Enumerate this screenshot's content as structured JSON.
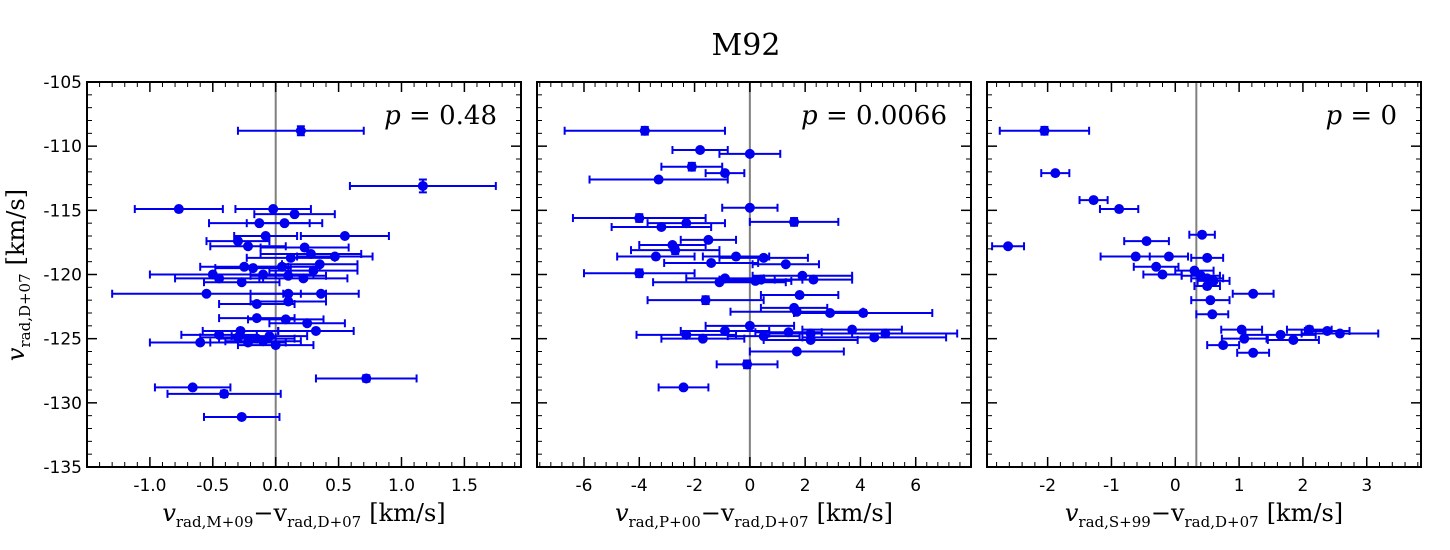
{
  "figure": {
    "title": "M92",
    "ylabel_main": "v",
    "ylabel_sub": "rad,D+07",
    "ylabel_unit": "[km/s]"
  },
  "colors": {
    "points": "#0000ee",
    "zero_line": "#808080"
  },
  "chart_data": [
    {
      "type": "scatter",
      "panel": "M+09",
      "annotation": "p = 0.48",
      "p_label": "p",
      "p_value": "0.48",
      "xlabel_parts": [
        "v",
        "rad,M+09",
        "−v",
        "rad,D+07",
        "[km/s]"
      ],
      "xlim": [
        -1.5,
        1.95
      ],
      "ylim": [
        -135,
        -105
      ],
      "xticks": [
        -1.0,
        -0.5,
        0.0,
        0.5,
        1.0,
        1.5
      ],
      "xtick_labels": [
        "-1.0",
        "-0.5",
        "0.0",
        "0.5",
        "1.0",
        "1.5"
      ],
      "yticks": [
        -135,
        -130,
        -125,
        -120,
        -115,
        -110,
        -105
      ],
      "ytick_labels": [
        "-135",
        "-130",
        "-125",
        "-120",
        "-115",
        "-110",
        "-105"
      ],
      "vline": 0.0,
      "points": [
        {
          "x": 0.2,
          "y": -108.8,
          "xerr": 0.5,
          "yerr": 0.35
        },
        {
          "x": 1.17,
          "y": -113.1,
          "xerr": 0.58,
          "yerr": 0.5
        },
        {
          "x": -0.77,
          "y": -114.9,
          "xerr": 0.35,
          "yerr": 0.1
        },
        {
          "x": -0.02,
          "y": -114.9,
          "xerr": 0.3,
          "yerr": 0.1
        },
        {
          "x": 0.15,
          "y": -115.3,
          "xerr": 0.32,
          "yerr": 0.1
        },
        {
          "x": -0.13,
          "y": -116.0,
          "xerr": 0.4,
          "yerr": 0.1
        },
        {
          "x": 0.07,
          "y": -116.0,
          "xerr": 0.3,
          "yerr": 0.1
        },
        {
          "x": -0.08,
          "y": -117.0,
          "xerr": 0.25,
          "yerr": 0.1
        },
        {
          "x": 0.55,
          "y": -117.0,
          "xerr": 0.35,
          "yerr": 0.1
        },
        {
          "x": -0.3,
          "y": -117.4,
          "xerr": 0.25,
          "yerr": 0.1
        },
        {
          "x": -0.22,
          "y": -117.8,
          "xerr": 0.3,
          "yerr": 0.1
        },
        {
          "x": 0.23,
          "y": -117.9,
          "xerr": 0.35,
          "yerr": 0.1
        },
        {
          "x": 0.28,
          "y": -118.4,
          "xerr": 0.4,
          "yerr": 0.1
        },
        {
          "x": 0.47,
          "y": -118.6,
          "xerr": 0.3,
          "yerr": 0.1
        },
        {
          "x": 0.12,
          "y": -118.7,
          "xerr": 0.35,
          "yerr": 0.1
        },
        {
          "x": 0.35,
          "y": -119.2,
          "xerr": 0.3,
          "yerr": 0.1
        },
        {
          "x": -0.25,
          "y": -119.4,
          "xerr": 0.35,
          "yerr": 0.1
        },
        {
          "x": -0.18,
          "y": -119.5,
          "xerr": 0.3,
          "yerr": 0.1
        },
        {
          "x": 0.05,
          "y": -119.4,
          "xerr": 0.3,
          "yerr": 0.1
        },
        {
          "x": 0.3,
          "y": -119.7,
          "xerr": 0.35,
          "yerr": 0.1
        },
        {
          "x": -0.5,
          "y": -120.0,
          "xerr": 0.5,
          "yerr": 0.1
        },
        {
          "x": -0.1,
          "y": -120.0,
          "xerr": 0.4,
          "yerr": 0.1
        },
        {
          "x": 0.1,
          "y": -120.1,
          "xerr": 0.3,
          "yerr": 0.1
        },
        {
          "x": -0.45,
          "y": -120.3,
          "xerr": 0.35,
          "yerr": 0.1
        },
        {
          "x": -0.27,
          "y": -120.6,
          "xerr": 0.3,
          "yerr": 0.1
        },
        {
          "x": 0.22,
          "y": -120.3,
          "xerr": 0.35,
          "yerr": 0.1
        },
        {
          "x": -0.55,
          "y": -121.5,
          "xerr": 0.75,
          "yerr": 0.1
        },
        {
          "x": 0.1,
          "y": -121.5,
          "xerr": 0.3,
          "yerr": 0.1
        },
        {
          "x": 0.36,
          "y": -121.5,
          "xerr": 0.3,
          "yerr": 0.1
        },
        {
          "x": -0.15,
          "y": -122.3,
          "xerr": 0.3,
          "yerr": 0.1
        },
        {
          "x": 0.1,
          "y": -122.1,
          "xerr": 0.3,
          "yerr": 0.1
        },
        {
          "x": -0.15,
          "y": -123.4,
          "xerr": 0.3,
          "yerr": 0.1
        },
        {
          "x": 0.08,
          "y": -123.5,
          "xerr": 0.3,
          "yerr": 0.1
        },
        {
          "x": 0.25,
          "y": -123.8,
          "xerr": 0.3,
          "yerr": 0.1
        },
        {
          "x": -0.28,
          "y": -124.4,
          "xerr": 0.3,
          "yerr": 0.1
        },
        {
          "x": 0.32,
          "y": -124.4,
          "xerr": 0.3,
          "yerr": 0.1
        },
        {
          "x": -0.45,
          "y": -124.7,
          "xerr": 0.3,
          "yerr": 0.1
        },
        {
          "x": -0.3,
          "y": -124.9,
          "xerr": 0.3,
          "yerr": 0.1
        },
        {
          "x": -0.15,
          "y": -125.0,
          "xerr": 0.3,
          "yerr": 0.1
        },
        {
          "x": -0.05,
          "y": -124.8,
          "xerr": 0.3,
          "yerr": 0.1
        },
        {
          "x": -0.6,
          "y": -125.3,
          "xerr": 0.4,
          "yerr": 0.1
        },
        {
          "x": -0.1,
          "y": -125.2,
          "xerr": 0.3,
          "yerr": 0.1
        },
        {
          "x": -0.22,
          "y": -125.3,
          "xerr": 0.3,
          "yerr": 0.1
        },
        {
          "x": 0.0,
          "y": -125.5,
          "xerr": 0.3,
          "yerr": 0.1
        },
        {
          "x": 0.72,
          "y": -128.1,
          "xerr": 0.4,
          "yerr": 0.25
        },
        {
          "x": -0.66,
          "y": -128.8,
          "xerr": 0.3,
          "yerr": 0.1
        },
        {
          "x": -0.41,
          "y": -129.3,
          "xerr": 0.45,
          "yerr": 0.25
        },
        {
          "x": -0.27,
          "y": -131.1,
          "xerr": 0.3,
          "yerr": 0.1
        }
      ]
    },
    {
      "type": "scatter",
      "panel": "P+00",
      "annotation": "p = 0.0066",
      "p_label": "p",
      "p_value": "0.0066",
      "xlabel_parts": [
        "v",
        "rad,P+00",
        "−v",
        "rad,D+07",
        "[km/s]"
      ],
      "xlim": [
        -7.7,
        8.0
      ],
      "ylim": [
        -135,
        -105
      ],
      "xticks": [
        -6,
        -4,
        -2,
        0,
        2,
        4,
        6
      ],
      "xtick_labels": [
        "-6",
        "-4",
        "-2",
        "0",
        "2",
        "4",
        "6"
      ],
      "yticks": [
        -135,
        -130,
        -125,
        -120,
        -115,
        -110,
        -105
      ],
      "ytick_labels": [
        "-135",
        "-130",
        "-125",
        "-120",
        "-115",
        "-110",
        "-105"
      ],
      "vline": 0.0,
      "points": [
        {
          "x": -3.8,
          "y": -108.8,
          "xerr": 2.9,
          "yerr": 0.3
        },
        {
          "x": -1.8,
          "y": -110.3,
          "xerr": 1.0,
          "yerr": 0.1
        },
        {
          "x": 0.0,
          "y": -110.6,
          "xerr": 1.1,
          "yerr": 0.1
        },
        {
          "x": -2.1,
          "y": -111.6,
          "xerr": 1.1,
          "yerr": 0.3
        },
        {
          "x": -0.9,
          "y": -112.1,
          "xerr": 0.7,
          "yerr": 0.1
        },
        {
          "x": -3.3,
          "y": -112.6,
          "xerr": 2.5,
          "yerr": 0.1
        },
        {
          "x": 0.0,
          "y": -114.8,
          "xerr": 1.0,
          "yerr": 0.1
        },
        {
          "x": -4.0,
          "y": -115.6,
          "xerr": 2.4,
          "yerr": 0.3
        },
        {
          "x": -2.3,
          "y": -116.0,
          "xerr": 1.4,
          "yerr": 0.1
        },
        {
          "x": 1.6,
          "y": -115.9,
          "xerr": 1.6,
          "yerr": 0.3
        },
        {
          "x": -3.2,
          "y": -116.3,
          "xerr": 1.8,
          "yerr": 0.1
        },
        {
          "x": -1.5,
          "y": -117.3,
          "xerr": 1.0,
          "yerr": 0.1
        },
        {
          "x": -2.8,
          "y": -117.7,
          "xerr": 1.2,
          "yerr": 0.1
        },
        {
          "x": -2.7,
          "y": -118.1,
          "xerr": 1.6,
          "yerr": 0.3
        },
        {
          "x": -3.4,
          "y": -118.6,
          "xerr": 1.4,
          "yerr": 0.1
        },
        {
          "x": -0.5,
          "y": -118.6,
          "xerr": 1.2,
          "yerr": 0.1
        },
        {
          "x": 0.5,
          "y": -118.7,
          "xerr": 1.6,
          "yerr": 0.1
        },
        {
          "x": -1.4,
          "y": -119.1,
          "xerr": 1.7,
          "yerr": 0.1
        },
        {
          "x": 1.3,
          "y": -119.2,
          "xerr": 1.2,
          "yerr": 0.1
        },
        {
          "x": -4.0,
          "y": -119.9,
          "xerr": 2.0,
          "yerr": 0.3
        },
        {
          "x": 1.9,
          "y": -120.1,
          "xerr": 1.8,
          "yerr": 0.1
        },
        {
          "x": -0.9,
          "y": -120.3,
          "xerr": 1.4,
          "yerr": 0.1
        },
        {
          "x": 0.4,
          "y": -120.4,
          "xerr": 1.5,
          "yerr": 0.1
        },
        {
          "x": 2.3,
          "y": -120.4,
          "xerr": 1.4,
          "yerr": 0.1
        },
        {
          "x": -1.1,
          "y": -120.6,
          "xerr": 2.4,
          "yerr": 0.1
        },
        {
          "x": 0.2,
          "y": -120.5,
          "xerr": 1.3,
          "yerr": 0.1
        },
        {
          "x": 1.8,
          "y": -121.6,
          "xerr": 1.4,
          "yerr": 0.1
        },
        {
          "x": -1.6,
          "y": -122.0,
          "xerr": 2.1,
          "yerr": 0.3
        },
        {
          "x": 1.6,
          "y": -122.6,
          "xerr": 1.2,
          "yerr": 0.1
        },
        {
          "x": 1.7,
          "y": -122.9,
          "xerr": 2.4,
          "yerr": 0.1
        },
        {
          "x": 2.9,
          "y": -123.0,
          "xerr": 1.3,
          "yerr": 0.1
        },
        {
          "x": 4.1,
          "y": -123.0,
          "xerr": 2.5,
          "yerr": 0.1
        },
        {
          "x": 0.0,
          "y": -124.0,
          "xerr": 1.6,
          "yerr": 0.1
        },
        {
          "x": -0.9,
          "y": -124.4,
          "xerr": 1.6,
          "yerr": 0.1
        },
        {
          "x": 1.4,
          "y": -124.5,
          "xerr": 1.2,
          "yerr": 0.1
        },
        {
          "x": 3.7,
          "y": -124.3,
          "xerr": 1.8,
          "yerr": 0.1
        },
        {
          "x": -2.3,
          "y": -124.7,
          "xerr": 1.8,
          "yerr": 0.1
        },
        {
          "x": -1.7,
          "y": -125.0,
          "xerr": 1.5,
          "yerr": 0.1
        },
        {
          "x": 0.5,
          "y": -124.8,
          "xerr": 1.3,
          "yerr": 0.1
        },
        {
          "x": 2.2,
          "y": -124.6,
          "xerr": 1.5,
          "yerr": 0.1
        },
        {
          "x": 4.9,
          "y": -124.6,
          "xerr": 2.6,
          "yerr": 0.1
        },
        {
          "x": 2.2,
          "y": -125.1,
          "xerr": 1.7,
          "yerr": 0.1
        },
        {
          "x": 4.5,
          "y": -124.9,
          "xerr": 2.6,
          "yerr": 0.1
        },
        {
          "x": 1.7,
          "y": -126.0,
          "xerr": 1.7,
          "yerr": 0.1
        },
        {
          "x": -0.1,
          "y": -127.0,
          "xerr": 1.1,
          "yerr": 0.3
        },
        {
          "x": -2.4,
          "y": -128.8,
          "xerr": 0.9,
          "yerr": 0.1
        }
      ]
    },
    {
      "type": "scatter",
      "panel": "S+99",
      "annotation": "p = 0",
      "p_label": "p",
      "p_value": "0",
      "xlabel_parts": [
        "v",
        "rad,S+99",
        "−v",
        "rad,D+07",
        "[km/s]"
      ],
      "xlim": [
        -2.95,
        3.85
      ],
      "ylim": [
        -135,
        -105
      ],
      "xticks": [
        -2,
        -1,
        0,
        1,
        2,
        3
      ],
      "xtick_labels": [
        "-2",
        "-1",
        "0",
        "1",
        "2",
        "3"
      ],
      "yticks": [
        -135,
        -130,
        -125,
        -120,
        -115,
        -110,
        -105
      ],
      "ytick_labels": [
        "-135",
        "-130",
        "-125",
        "-120",
        "-115",
        "-110",
        "-105"
      ],
      "vline": 0.33,
      "points": [
        {
          "x": -2.05,
          "y": -108.8,
          "xerr": 0.7,
          "yerr": 0.3
        },
        {
          "x": -1.88,
          "y": -112.1,
          "xerr": 0.22,
          "yerr": 0.1
        },
        {
          "x": -1.28,
          "y": -114.2,
          "xerr": 0.22,
          "yerr": 0.1
        },
        {
          "x": -0.88,
          "y": -114.9,
          "xerr": 0.3,
          "yerr": 0.1
        },
        {
          "x": 0.42,
          "y": -116.9,
          "xerr": 0.2,
          "yerr": 0.1
        },
        {
          "x": -0.45,
          "y": -117.4,
          "xerr": 0.35,
          "yerr": 0.1
        },
        {
          "x": -2.62,
          "y": -117.8,
          "xerr": 0.25,
          "yerr": 0.1
        },
        {
          "x": -0.62,
          "y": -118.6,
          "xerr": 0.55,
          "yerr": 0.1
        },
        {
          "x": -0.1,
          "y": -118.6,
          "xerr": 0.3,
          "yerr": 0.1
        },
        {
          "x": 0.5,
          "y": -118.7,
          "xerr": 0.25,
          "yerr": 0.1
        },
        {
          "x": -0.3,
          "y": -119.4,
          "xerr": 0.35,
          "yerr": 0.1
        },
        {
          "x": 0.3,
          "y": -119.7,
          "xerr": 0.3,
          "yerr": 0.1
        },
        {
          "x": -0.2,
          "y": -120.0,
          "xerr": 0.3,
          "yerr": 0.1
        },
        {
          "x": 0.4,
          "y": -120.1,
          "xerr": 0.3,
          "yerr": 0.1
        },
        {
          "x": 0.5,
          "y": -120.3,
          "xerr": 0.25,
          "yerr": 0.1
        },
        {
          "x": 0.6,
          "y": -120.5,
          "xerr": 0.25,
          "yerr": 0.1
        },
        {
          "x": 0.5,
          "y": -120.9,
          "xerr": 0.2,
          "yerr": 0.1
        },
        {
          "x": 1.22,
          "y": -121.5,
          "xerr": 0.32,
          "yerr": 0.1
        },
        {
          "x": 0.55,
          "y": -122.0,
          "xerr": 0.3,
          "yerr": 0.1
        },
        {
          "x": 0.58,
          "y": -123.1,
          "xerr": 0.25,
          "yerr": 0.1
        },
        {
          "x": 1.04,
          "y": -124.3,
          "xerr": 0.32,
          "yerr": 0.1
        },
        {
          "x": 2.38,
          "y": -124.4,
          "xerr": 0.35,
          "yerr": 0.1
        },
        {
          "x": 2.1,
          "y": -124.3,
          "xerr": 0.35,
          "yerr": 0.25
        },
        {
          "x": 1.65,
          "y": -124.7,
          "xerr": 0.55,
          "yerr": 0.1
        },
        {
          "x": 2.58,
          "y": -124.6,
          "xerr": 0.6,
          "yerr": 0.1
        },
        {
          "x": 1.08,
          "y": -125.0,
          "xerr": 0.35,
          "yerr": 0.1
        },
        {
          "x": 1.85,
          "y": -125.1,
          "xerr": 0.4,
          "yerr": 0.1
        },
        {
          "x": 0.75,
          "y": -125.5,
          "xerr": 0.25,
          "yerr": 0.1
        },
        {
          "x": 1.22,
          "y": -126.1,
          "xerr": 0.25,
          "yerr": 0.1
        }
      ]
    }
  ]
}
